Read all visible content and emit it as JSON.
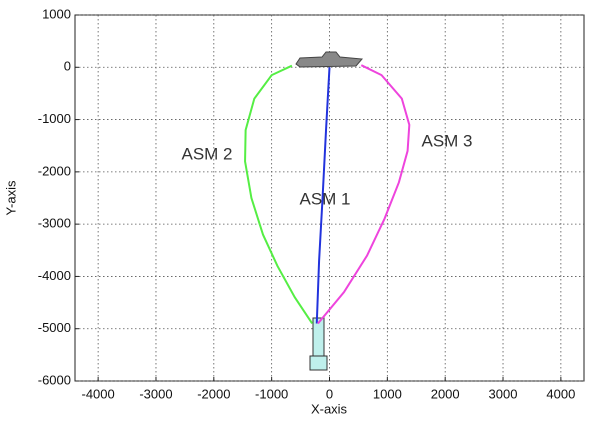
{
  "chart_data": {
    "type": "line",
    "x_label": "X-axis",
    "y_label": "Y-axis",
    "xlim": [
      -4400,
      4400
    ],
    "ylim": [
      -6000,
      1000
    ],
    "xticks": [
      -4000,
      -3000,
      -2000,
      -1000,
      0,
      1000,
      2000,
      3000,
      4000
    ],
    "yticks": [
      -6000,
      -5000,
      -4000,
      -3000,
      -2000,
      -1000,
      0,
      1000
    ],
    "grid": true,
    "series": [
      {
        "name": "ASM 1",
        "color": "#2233dd",
        "x": [
          -220,
          -180,
          -120,
          -60,
          0
        ],
        "values": [
          -4900,
          -3700,
          -2500,
          -1200,
          0
        ]
      },
      {
        "name": "ASM 2",
        "color": "#55ee44",
        "x": [
          -300,
          -600,
          -900,
          -1150,
          -1350,
          -1460,
          -1450,
          -1300,
          -1000,
          -650
        ],
        "values": [
          -4900,
          -4400,
          -3800,
          -3200,
          -2500,
          -1800,
          -1200,
          -600,
          -150,
          30
        ]
      },
      {
        "name": "ASM 3",
        "color": "#ee44dd",
        "x": [
          -200,
          250,
          650,
          950,
          1200,
          1350,
          1380,
          1250,
          900,
          550
        ],
        "values": [
          -4900,
          -4300,
          -3600,
          -2900,
          -2200,
          -1600,
          -1100,
          -600,
          -150,
          40
        ]
      }
    ]
  }
}
